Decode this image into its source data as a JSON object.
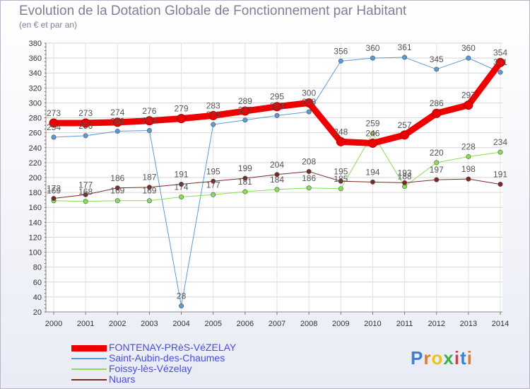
{
  "title": "Evolution de la Dotation Globale de Fonctionnement par Habitant",
  "subtitle": "(en € et par an)",
  "logo": {
    "text": "Proxiti",
    "letters": [
      "P",
      "r",
      "o",
      "x",
      "i",
      "t",
      "i"
    ],
    "colors": [
      "#3d7fd6",
      "#e87b1e",
      "#e8c21e",
      "#3db04a",
      "#d63d3d",
      "#3d7fd6",
      "#e87b1e"
    ]
  },
  "chart_data": {
    "type": "line",
    "title": "Evolution de la Dotation Globale de Fonctionnement par Habitant",
    "subtitle": "(en € et par an)",
    "x": [
      "2000",
      "2001",
      "2002",
      "2003",
      "2004",
      "2005",
      "2006",
      "2007",
      "2008",
      "2009",
      "2010",
      "2011",
      "2012",
      "2013",
      "2014"
    ],
    "ylim": [
      20,
      380
    ],
    "yticks": [
      "20",
      "40",
      "60",
      "80",
      "100",
      "120",
      "140",
      "160",
      "180",
      "200",
      "220",
      "240",
      "260",
      "280",
      "300",
      "320",
      "340",
      "360",
      "380"
    ],
    "grid": true,
    "legend_position": "bottom-left",
    "series": [
      {
        "name": "FONTENAY-PRèS-VéZELAY",
        "color": "#ee0000",
        "width": 9,
        "labels": "above",
        "values": [
          273,
          273,
          274,
          276,
          279,
          283,
          289,
          295,
          300,
          248,
          246,
          257,
          286,
          297,
          354
        ]
      },
      {
        "name": "Saint-Aubin-des-Chaumes",
        "color": "#5b9bd5",
        "width": 1,
        "labels": "above",
        "values": [
          254,
          256,
          262,
          263,
          28,
          271,
          277,
          283,
          288,
          356,
          360,
          361,
          345,
          360,
          341
        ]
      },
      {
        "name": "Foissy-lès-Vézelay",
        "color": "#88dd55",
        "width": 1,
        "labels": "above",
        "values": [
          169,
          168,
          169,
          169,
          174,
          177,
          181,
          184,
          186,
          185,
          259,
          188,
          220,
          228,
          234
        ]
      },
      {
        "name": "Nuars",
        "color": "#7a2828",
        "width": 1,
        "labels": "above",
        "values": [
          172,
          177,
          186,
          187,
          191,
          195,
          199,
          204,
          208,
          195,
          194,
          193,
          197,
          198,
          191
        ]
      }
    ]
  }
}
